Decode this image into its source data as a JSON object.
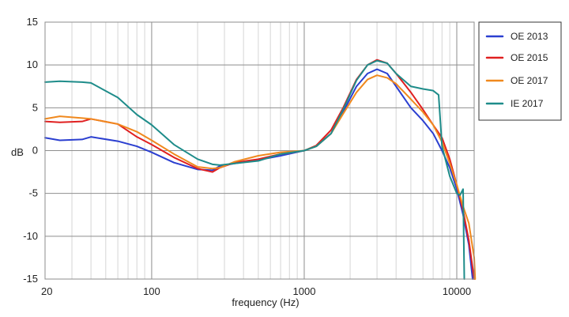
{
  "chart_data": {
    "type": "line",
    "title": "",
    "xlabel": "frequency (Hz)",
    "ylabel": "dB",
    "xscale": "log",
    "xlim": [
      20,
      13000
    ],
    "ylim": [
      -15,
      15
    ],
    "x_tick_labels": [
      {
        "value": 20,
        "label": "20"
      },
      {
        "value": 100,
        "label": "100"
      },
      {
        "value": 1000,
        "label": "1000"
      },
      {
        "value": 10000,
        "label": "10000"
      }
    ],
    "y_ticks": [
      15,
      10,
      5,
      0,
      -5,
      -10,
      -15
    ],
    "y_tick_labels": [
      "15",
      "10",
      "5",
      "0",
      "-5",
      "-10",
      "-15"
    ],
    "grid": true,
    "legend_position": "right",
    "series": [
      {
        "name": "OE 2013",
        "color": "#2b3fd0",
        "points": [
          [
            20,
            1.5
          ],
          [
            25,
            1.2
          ],
          [
            35,
            1.3
          ],
          [
            40,
            1.6
          ],
          [
            60,
            1.1
          ],
          [
            80,
            0.5
          ],
          [
            100,
            -0.2
          ],
          [
            140,
            -1.4
          ],
          [
            200,
            -2.2
          ],
          [
            250,
            -2.3
          ],
          [
            280,
            -1.8
          ],
          [
            350,
            -1.5
          ],
          [
            500,
            -1.1
          ],
          [
            700,
            -0.6
          ],
          [
            1000,
            0.0
          ],
          [
            1200,
            0.5
          ],
          [
            1500,
            2.0
          ],
          [
            1800,
            4.5
          ],
          [
            2200,
            7.5
          ],
          [
            2600,
            9.0
          ],
          [
            3000,
            9.5
          ],
          [
            3500,
            9.0
          ],
          [
            4000,
            7.5
          ],
          [
            5000,
            5.0
          ],
          [
            6000,
            3.5
          ],
          [
            7000,
            2.0
          ],
          [
            8000,
            0.0
          ],
          [
            9000,
            -2.0
          ],
          [
            10000,
            -4.5
          ],
          [
            11000,
            -7.5
          ],
          [
            12000,
            -11.0
          ],
          [
            12700,
            -15.0
          ]
        ]
      },
      {
        "name": "OE 2015",
        "color": "#e02020",
        "points": [
          [
            20,
            3.4
          ],
          [
            25,
            3.3
          ],
          [
            35,
            3.4
          ],
          [
            40,
            3.7
          ],
          [
            60,
            3.1
          ],
          [
            80,
            1.6
          ],
          [
            100,
            0.7
          ],
          [
            140,
            -0.8
          ],
          [
            200,
            -2.1
          ],
          [
            250,
            -2.5
          ],
          [
            280,
            -2.0
          ],
          [
            350,
            -1.4
          ],
          [
            500,
            -1.0
          ],
          [
            700,
            -0.4
          ],
          [
            1000,
            0.0
          ],
          [
            1200,
            0.6
          ],
          [
            1500,
            2.4
          ],
          [
            1800,
            5.0
          ],
          [
            2200,
            8.3
          ],
          [
            2600,
            10.0
          ],
          [
            3000,
            10.6
          ],
          [
            3500,
            10.2
          ],
          [
            4000,
            9.0
          ],
          [
            5000,
            6.8
          ],
          [
            6000,
            4.8
          ],
          [
            7000,
            3.0
          ],
          [
            8000,
            1.5
          ],
          [
            9000,
            -1.0
          ],
          [
            10000,
            -4.0
          ],
          [
            11000,
            -7.0
          ],
          [
            12000,
            -10.5
          ],
          [
            13000,
            -15.0
          ]
        ]
      },
      {
        "name": "OE 2017",
        "color": "#f0891e",
        "points": [
          [
            20,
            3.7
          ],
          [
            25,
            4.0
          ],
          [
            35,
            3.8
          ],
          [
            40,
            3.7
          ],
          [
            60,
            3.1
          ],
          [
            80,
            2.2
          ],
          [
            100,
            1.2
          ],
          [
            140,
            -0.4
          ],
          [
            200,
            -1.9
          ],
          [
            250,
            -2.1
          ],
          [
            280,
            -2.0
          ],
          [
            350,
            -1.3
          ],
          [
            500,
            -0.6
          ],
          [
            700,
            -0.2
          ],
          [
            1000,
            0.0
          ],
          [
            1200,
            0.5
          ],
          [
            1500,
            2.0
          ],
          [
            1800,
            4.3
          ],
          [
            2200,
            6.8
          ],
          [
            2600,
            8.3
          ],
          [
            3000,
            8.8
          ],
          [
            3500,
            8.5
          ],
          [
            4000,
            7.8
          ],
          [
            5000,
            6.0
          ],
          [
            6000,
            4.5
          ],
          [
            7000,
            3.0
          ],
          [
            8000,
            1.0
          ],
          [
            9000,
            -1.5
          ],
          [
            10000,
            -4.0
          ],
          [
            11000,
            -6.5
          ],
          [
            12000,
            -8.5
          ],
          [
            13000,
            -12.5
          ],
          [
            13200,
            -15.0
          ]
        ]
      },
      {
        "name": "IE 2017",
        "color": "#1e8c8a",
        "points": [
          [
            20,
            8.0
          ],
          [
            25,
            8.1
          ],
          [
            35,
            8.0
          ],
          [
            40,
            7.9
          ],
          [
            60,
            6.2
          ],
          [
            80,
            4.2
          ],
          [
            100,
            3.0
          ],
          [
            140,
            0.7
          ],
          [
            200,
            -1.0
          ],
          [
            250,
            -1.6
          ],
          [
            280,
            -1.7
          ],
          [
            350,
            -1.5
          ],
          [
            500,
            -1.2
          ],
          [
            700,
            -0.4
          ],
          [
            1000,
            0.0
          ],
          [
            1200,
            0.5
          ],
          [
            1500,
            2.0
          ],
          [
            1800,
            4.8
          ],
          [
            2200,
            8.2
          ],
          [
            2600,
            10.0
          ],
          [
            3000,
            10.5
          ],
          [
            3500,
            10.2
          ],
          [
            4000,
            9.0
          ],
          [
            5000,
            7.5
          ],
          [
            6000,
            7.2
          ],
          [
            7000,
            7.0
          ],
          [
            7600,
            6.5
          ],
          [
            8000,
            0.5
          ],
          [
            9000,
            -3.0
          ],
          [
            10000,
            -5.0
          ],
          [
            10500,
            -5.2
          ],
          [
            11000,
            -4.5
          ],
          [
            11200,
            -15.0
          ]
        ]
      }
    ]
  }
}
